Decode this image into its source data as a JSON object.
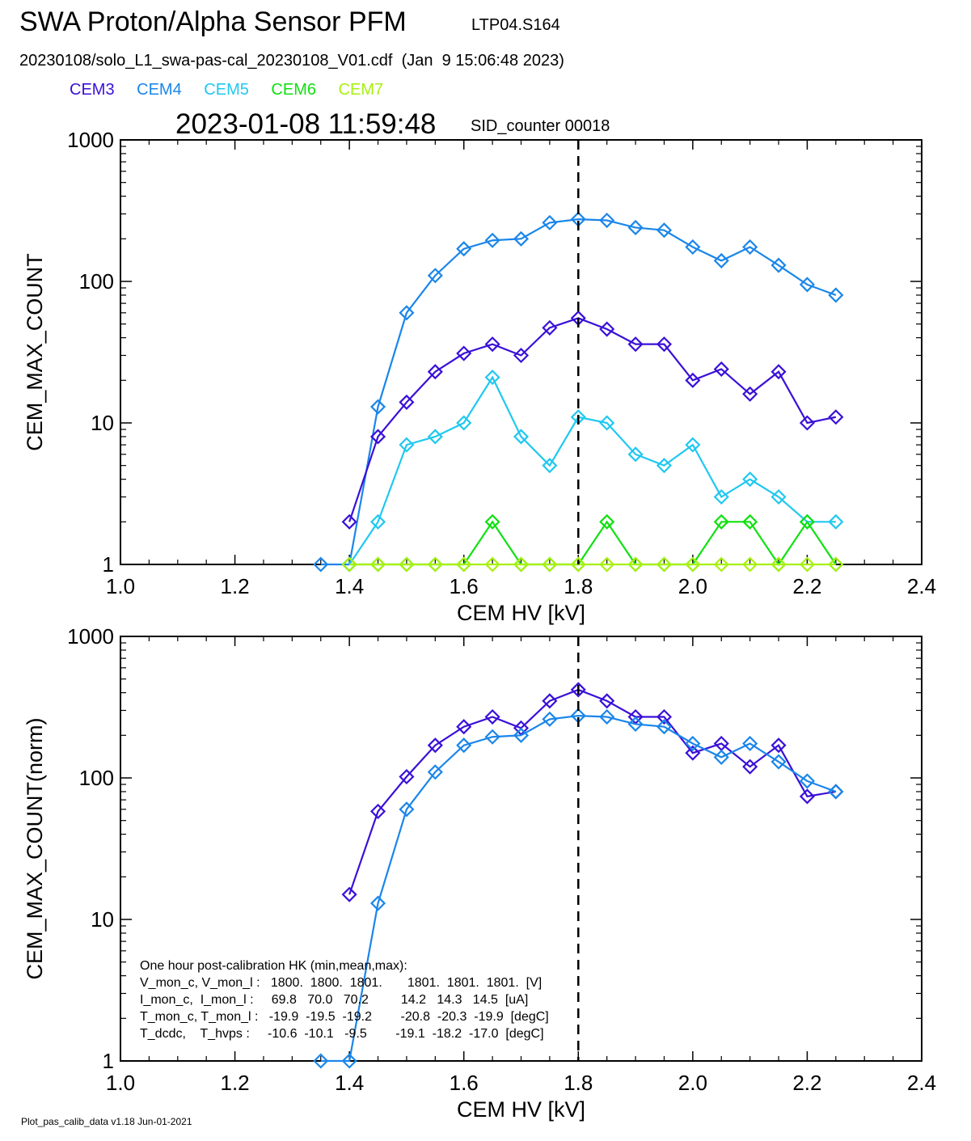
{
  "header": {
    "title": "SWA Proton/Alpha Sensor PFM",
    "tag": "LTP04.S164",
    "file": "20230108/solo_L1_swa-pas-cal_20230108_V01.cdf  (Jan  9 15:06:48 2023)",
    "datetime": "2023-01-08 11:59:48",
    "sid": "SID_counter 00018"
  },
  "legend": [
    {
      "name": "CEM3",
      "color": "#3a10d8"
    },
    {
      "name": "CEM4",
      "color": "#1a86ea"
    },
    {
      "name": "CEM5",
      "color": "#20c8f0"
    },
    {
      "name": "CEM6",
      "color": "#10e010"
    },
    {
      "name": "CEM7",
      "color": "#a8f010"
    }
  ],
  "footer": "Plot_pas_calib_data v1.18 Jun-01-2021",
  "chart_data": [
    {
      "type": "line",
      "xlabel": "CEM HV [kV]",
      "ylabel": "CEM_MAX_COUNT",
      "xlim": [
        1.0,
        2.4
      ],
      "ylim": [
        1,
        1000
      ],
      "yscale": "log",
      "xticks": [
        "1.0",
        "1.2",
        "1.4",
        "1.6",
        "1.8",
        "2.0",
        "2.2",
        "2.4"
      ],
      "yticks": [
        "1",
        "10",
        "100",
        "1000"
      ],
      "marker_line_x": 1.8,
      "series": [
        {
          "name": "CEM4",
          "color": "#1a86ea",
          "x": [
            1.35,
            1.4,
            1.45,
            1.5,
            1.55,
            1.6,
            1.65,
            1.7,
            1.75,
            1.8,
            1.85,
            1.9,
            1.95,
            2.0,
            2.05,
            2.1,
            2.15,
            2.2,
            2.25
          ],
          "y": [
            1,
            1,
            13,
            60,
            110,
            170,
            195,
            200,
            260,
            275,
            270,
            240,
            230,
            175,
            140,
            175,
            130,
            95,
            80
          ]
        },
        {
          "name": "CEM3",
          "color": "#3a10d8",
          "x": [
            1.4,
            1.45,
            1.5,
            1.55,
            1.6,
            1.65,
            1.7,
            1.75,
            1.8,
            1.85,
            1.9,
            1.95,
            2.0,
            2.05,
            2.1,
            2.15,
            2.2,
            2.25
          ],
          "y": [
            2,
            8,
            14,
            23,
            31,
            36,
            30,
            47,
            55,
            46,
            36,
            36,
            20,
            24,
            16,
            23,
            10,
            11
          ]
        },
        {
          "name": "CEM5",
          "color": "#20c8f0",
          "x": [
            1.4,
            1.45,
            1.5,
            1.55,
            1.6,
            1.65,
            1.7,
            1.75,
            1.8,
            1.85,
            1.9,
            1.95,
            2.0,
            2.05,
            2.1,
            2.15,
            2.2,
            2.25
          ],
          "y": [
            1,
            2,
            7,
            8,
            10,
            21,
            8,
            5,
            11,
            10,
            6,
            5,
            7,
            3,
            4,
            3,
            2,
            2
          ]
        },
        {
          "name": "CEM6",
          "color": "#10e010",
          "x": [
            1.4,
            1.45,
            1.5,
            1.55,
            1.6,
            1.65,
            1.7,
            1.75,
            1.8,
            1.85,
            1.9,
            1.95,
            2.0,
            2.05,
            2.1,
            2.15,
            2.2,
            2.25
          ],
          "y": [
            1,
            1,
            1,
            1,
            1,
            2,
            1,
            1,
            1,
            2,
            1,
            1,
            1,
            2,
            2,
            1,
            2,
            1
          ]
        },
        {
          "name": "CEM7",
          "color": "#a8f010",
          "x": [
            1.4,
            1.45,
            1.5,
            1.55,
            1.6,
            1.65,
            1.7,
            1.75,
            1.8,
            1.85,
            1.9,
            1.95,
            2.0,
            2.05,
            2.1,
            2.15,
            2.2,
            2.25
          ],
          "y": [
            1,
            1,
            1,
            1,
            1,
            1,
            1,
            1,
            1,
            1,
            1,
            1,
            1,
            1,
            1,
            1,
            1,
            1
          ]
        }
      ]
    },
    {
      "type": "line",
      "xlabel": "CEM HV [kV]",
      "ylabel": "CEM_MAX_COUNT(norm)",
      "xlim": [
        1.0,
        2.4
      ],
      "ylim": [
        1,
        1000
      ],
      "yscale": "log",
      "xticks": [
        "1.0",
        "1.2",
        "1.4",
        "1.6",
        "1.8",
        "2.0",
        "2.2",
        "2.4"
      ],
      "yticks": [
        "1",
        "10",
        "100",
        "1000"
      ],
      "marker_line_x": 1.8,
      "series": [
        {
          "name": "CEM3",
          "color": "#3a10d8",
          "x": [
            1.4,
            1.45,
            1.5,
            1.55,
            1.6,
            1.65,
            1.7,
            1.75,
            1.8,
            1.85,
            1.9,
            1.95,
            2.0,
            2.05,
            2.1,
            2.15,
            2.2,
            2.25
          ],
          "y": [
            15,
            58,
            102,
            170,
            230,
            270,
            225,
            350,
            420,
            350,
            270,
            270,
            150,
            175,
            120,
            170,
            74,
            80
          ]
        },
        {
          "name": "CEM4",
          "color": "#1a86ea",
          "x": [
            1.35,
            1.4,
            1.45,
            1.5,
            1.55,
            1.6,
            1.65,
            1.7,
            1.75,
            1.8,
            1.85,
            1.9,
            1.95,
            2.0,
            2.05,
            2.1,
            2.15,
            2.2,
            2.25
          ],
          "y": [
            1,
            1,
            13,
            60,
            110,
            170,
            195,
            200,
            260,
            275,
            270,
            240,
            230,
            175,
            140,
            175,
            130,
            95,
            80
          ]
        }
      ],
      "annotation": [
        "One hour post-calibration HK (min,mean,max):",
        "V_mon_c, V_mon_l :   1800.  1800.  1801.       1801.  1801.  1801.  [V]",
        "I_mon_c,  I_mon_l :     69.8   70.0   70.2         14.2   14.3   14.5  [uA]",
        "T_mon_c, T_mon_l :   -19.9  -19.5  -19.2        -20.8  -20.3  -19.9  [degC]",
        "T_dcdc,    T_hvps :     -10.6  -10.1   -9.5        -19.1  -18.2  -17.0  [degC]"
      ]
    }
  ]
}
